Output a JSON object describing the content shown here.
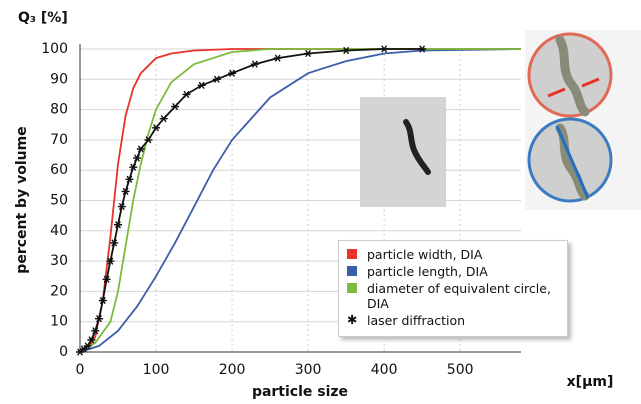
{
  "chart_data": {
    "type": "line",
    "y_unit_label": "Q₃ [%]",
    "ylabel": "percent by volume",
    "xlabel": "particle size",
    "x_unit_label": "x[µm]",
    "xlim": [
      0,
      580
    ],
    "ylim": [
      0,
      100
    ],
    "xticks": [
      0,
      100,
      200,
      300,
      400,
      500
    ],
    "yticks": [
      0,
      10,
      20,
      30,
      40,
      50,
      60,
      70,
      80,
      90,
      100
    ],
    "grid": true,
    "legend": "lower right",
    "series": [
      {
        "name": "particle width, DIA",
        "color": "#e8322b",
        "marker": "square",
        "x": [
          0,
          10,
          20,
          30,
          40,
          50,
          60,
          70,
          80,
          100,
          120,
          150,
          200,
          580
        ],
        "values": [
          0,
          1,
          5,
          17,
          38,
          62,
          78,
          87,
          92,
          97,
          98.5,
          99.5,
          100,
          100
        ]
      },
      {
        "name": "particle length, DIA",
        "color": "#3b5ea8",
        "marker": "square",
        "x": [
          0,
          25,
          50,
          75,
          100,
          125,
          150,
          175,
          200,
          250,
          300,
          350,
          400,
          450,
          580
        ],
        "values": [
          0,
          2,
          7,
          15,
          25,
          36,
          48,
          60,
          70,
          84,
          92,
          96,
          98.5,
          99.5,
          100
        ]
      },
      {
        "name": "diameter of equivalent circle, DIA",
        "color": "#7dbb3c",
        "marker": "square",
        "x": [
          0,
          20,
          40,
          50,
          60,
          70,
          80,
          90,
          100,
          120,
          150,
          200,
          250,
          580
        ],
        "values": [
          0,
          3,
          10,
          20,
          35,
          50,
          62,
          72,
          80,
          89,
          95,
          99,
          100,
          100
        ]
      },
      {
        "name": "laser diffraction",
        "color": "#111111",
        "marker": "asterisk",
        "x": [
          0,
          5,
          10,
          15,
          20,
          25,
          30,
          35,
          40,
          45,
          50,
          55,
          60,
          65,
          70,
          75,
          80,
          90,
          100,
          110,
          125,
          140,
          160,
          180,
          200,
          230,
          260,
          300,
          350,
          400,
          450
        ],
        "values": [
          0,
          1,
          2,
          4,
          7,
          11,
          17,
          24,
          30,
          36,
          42,
          48,
          53,
          57,
          61,
          64,
          67,
          70,
          74,
          77,
          81,
          85,
          88,
          90,
          92,
          95,
          97,
          98.5,
          99.5,
          100,
          100
        ]
      }
    ]
  }
}
